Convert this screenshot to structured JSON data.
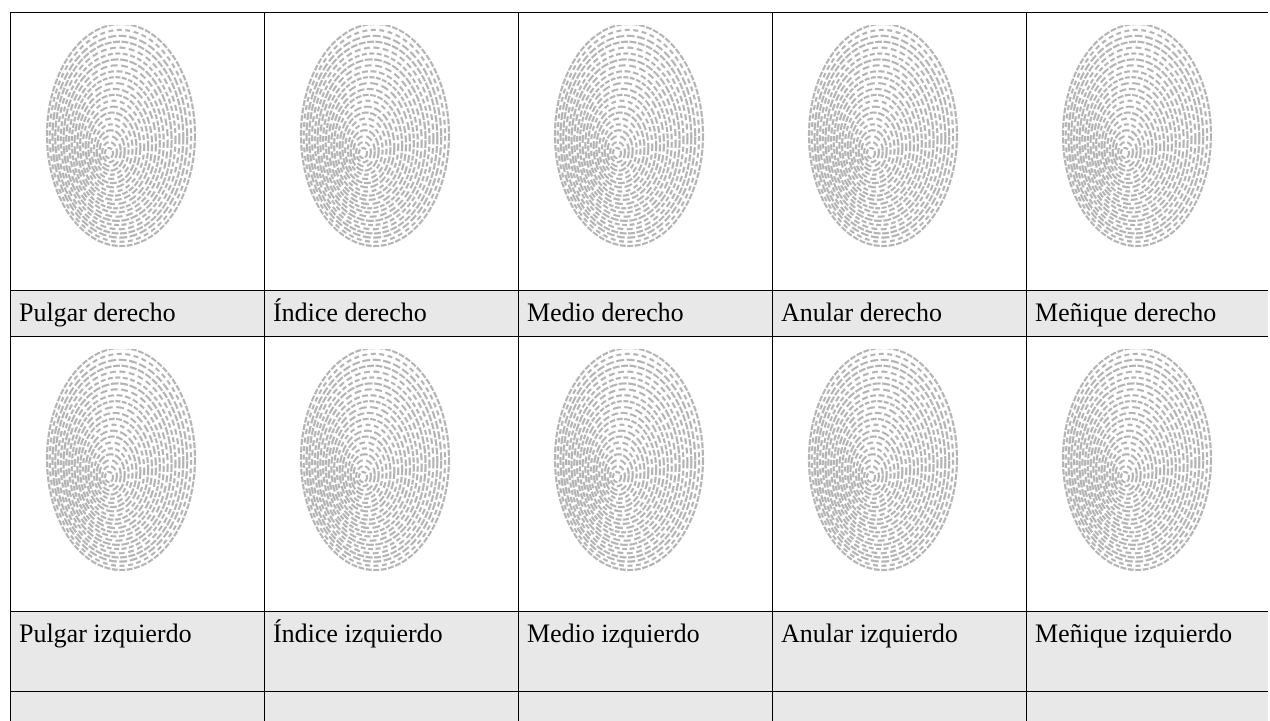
{
  "table": {
    "rows": [
      [
        "Pulgar derecho",
        "Índice derecho",
        "Medio derecho",
        "Anular derecho",
        "Meñique derecho"
      ],
      [
        "Pulgar izquierdo",
        "Índice izquierdo",
        "Medio izquierdo",
        "Anular izquierdo",
        "Meñique izquierdo"
      ]
    ]
  }
}
